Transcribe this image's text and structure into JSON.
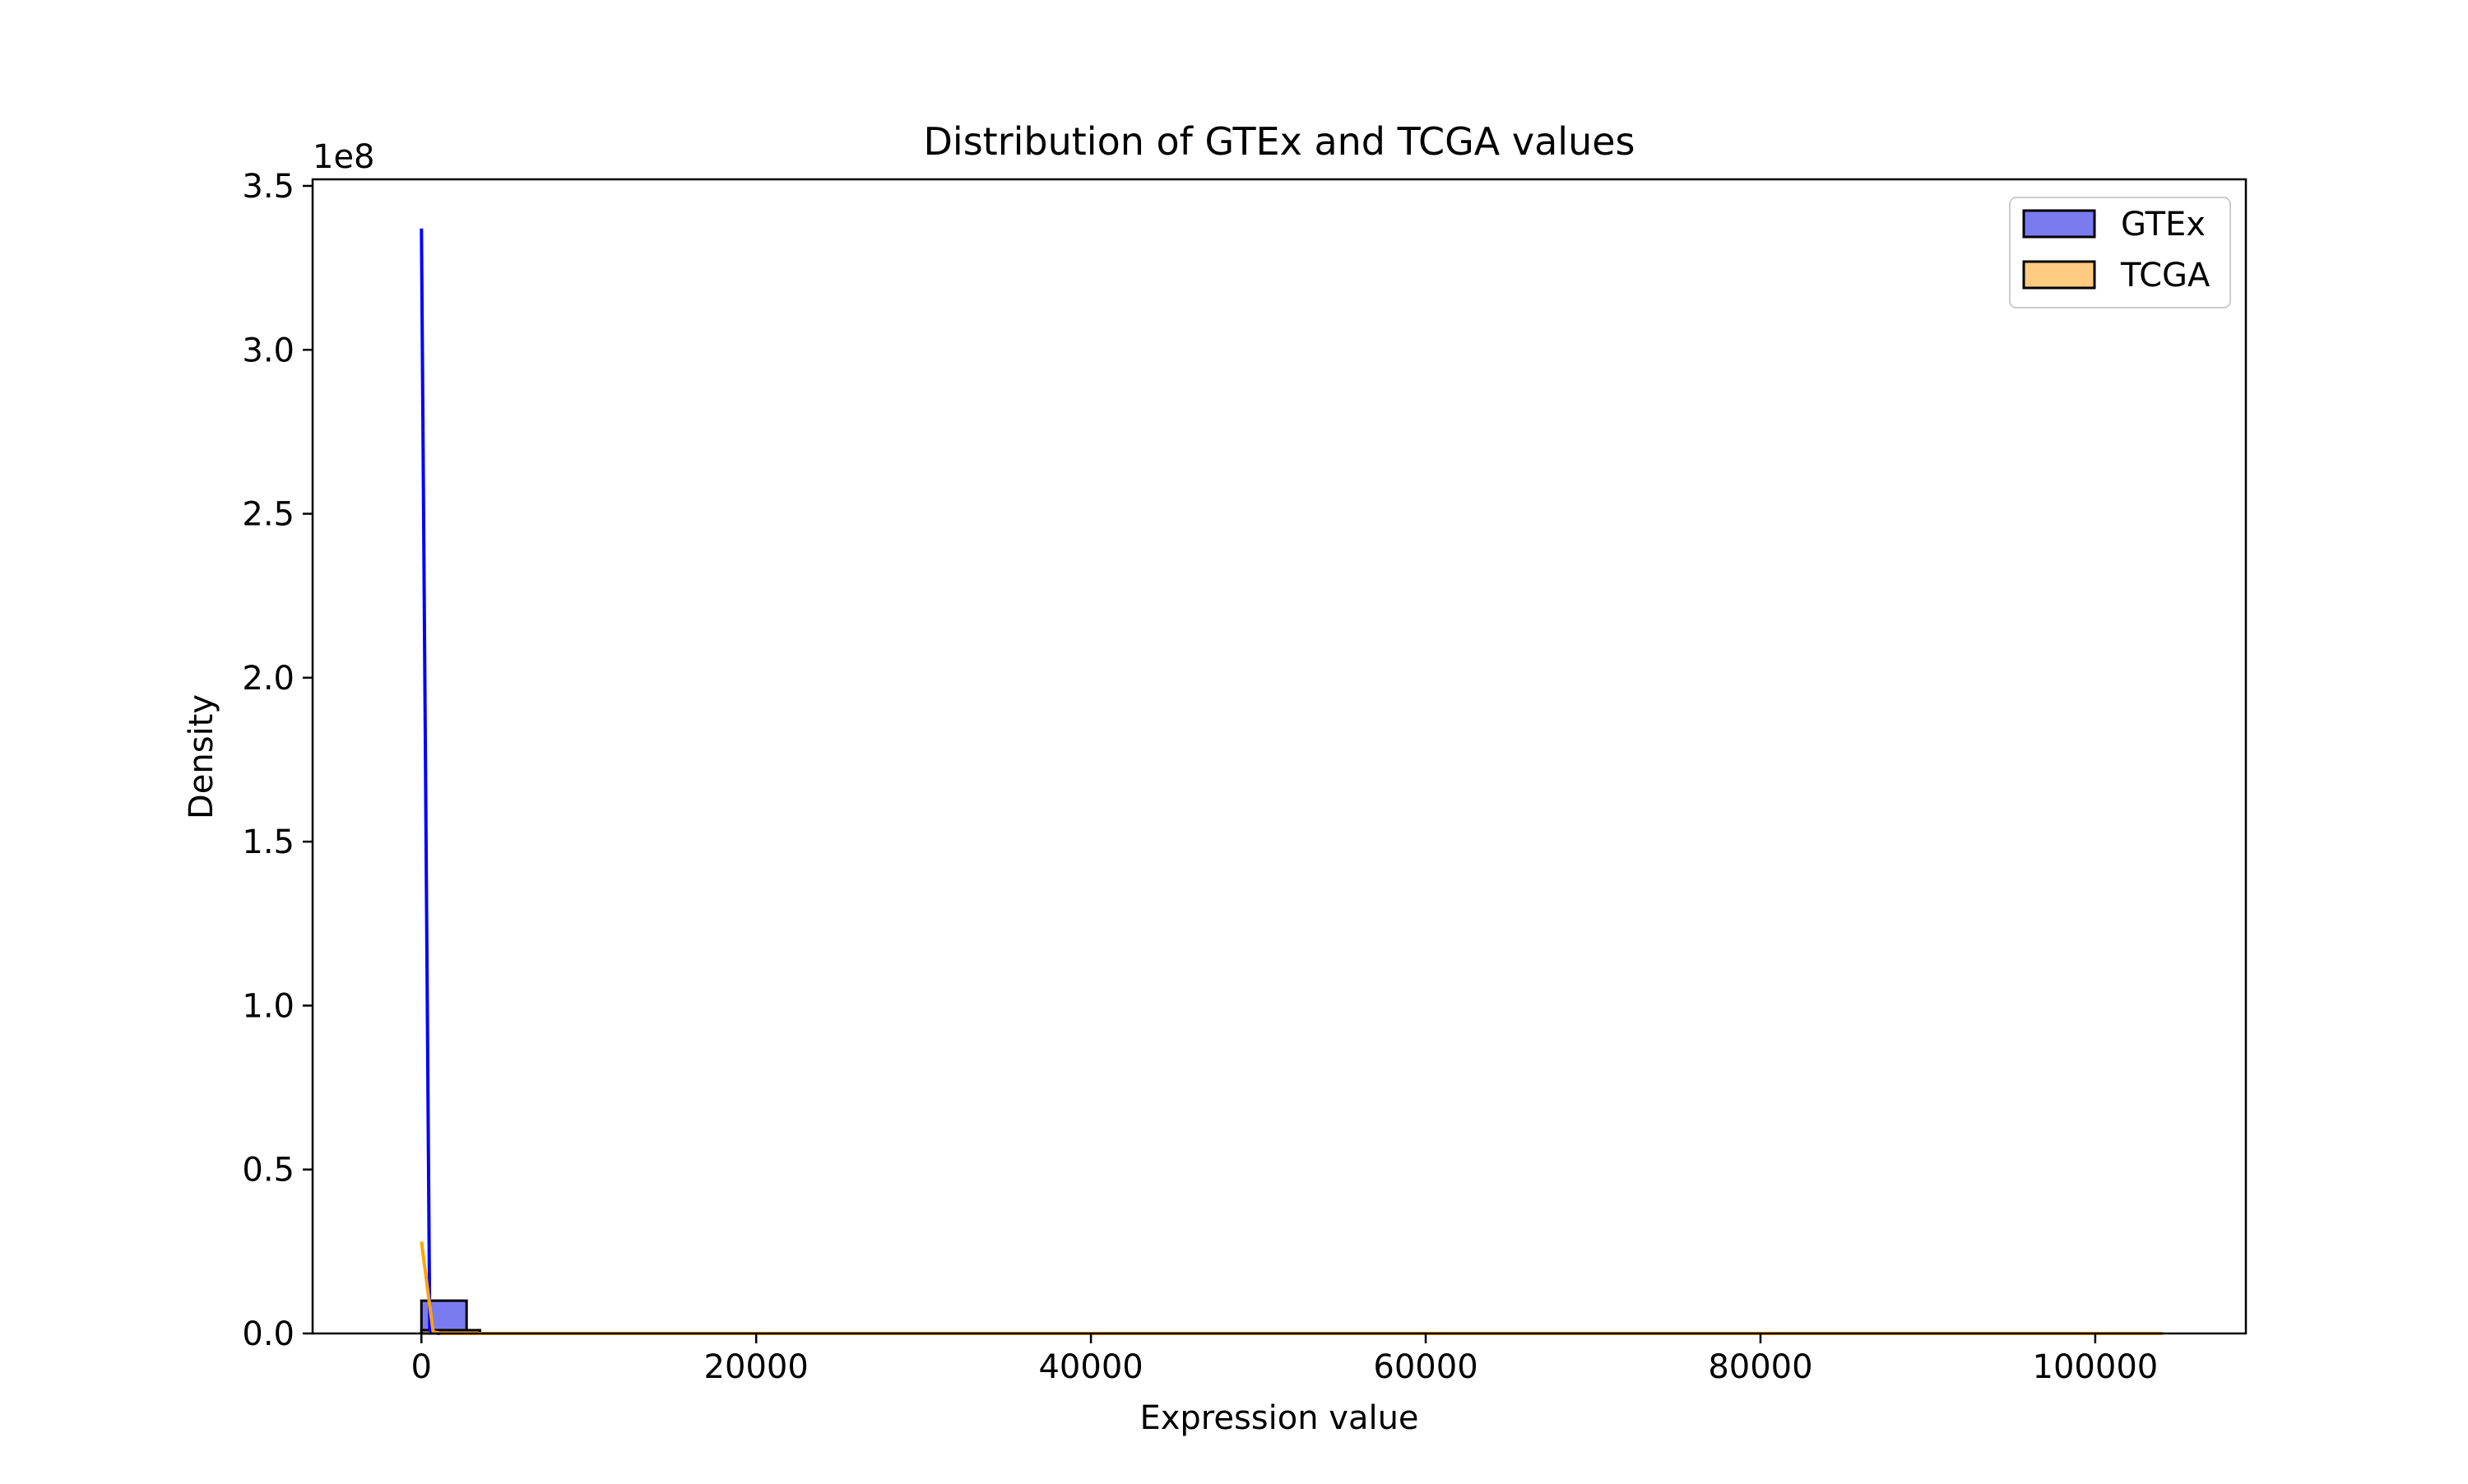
{
  "chart_data": {
    "type": "histogram",
    "title": "Distribution of GTEx and TCGA values",
    "xlabel": "Expression value",
    "ylabel": "Density",
    "y_offset_label": "1e8",
    "xlim": [
      -6500,
      109000
    ],
    "ylim": [
      0,
      352000000.0
    ],
    "xticks": [
      0,
      20000,
      40000,
      60000,
      80000,
      100000
    ],
    "xtick_labels": [
      "0",
      "20000",
      "40000",
      "60000",
      "80000",
      "100000"
    ],
    "yticks": [
      0,
      50000000.0,
      100000000.0,
      150000000.0,
      200000000.0,
      250000000.0,
      300000000.0,
      350000000.0
    ],
    "ytick_labels": [
      "0.0",
      "0.5",
      "1.0",
      "1.5",
      "2.0",
      "2.5",
      "3.0",
      "3.5"
    ],
    "grid": false,
    "legend_position": "top-right",
    "series": [
      {
        "name": "GTEx",
        "bar_color": "#7b7bf0",
        "line_color": "#0000ff",
        "bins": [
          {
            "x0": 0,
            "x1": 2700,
            "value": 10000000.0
          }
        ],
        "kde": [
          [
            0,
            337000000.0
          ],
          [
            500,
            1000000.0
          ],
          [
            1000,
            0
          ],
          [
            104000,
            0
          ]
        ]
      },
      {
        "name": "TCGA",
        "bar_color": "#ffcb80",
        "line_color": "#ffa500",
        "bins": [
          {
            "x0": 0,
            "x1": 3500,
            "value": 1000000.0
          }
        ],
        "kde": [
          [
            0,
            28000000.0
          ],
          [
            700,
            500000.0
          ],
          [
            1200,
            0
          ],
          [
            104000,
            0
          ]
        ]
      }
    ]
  }
}
